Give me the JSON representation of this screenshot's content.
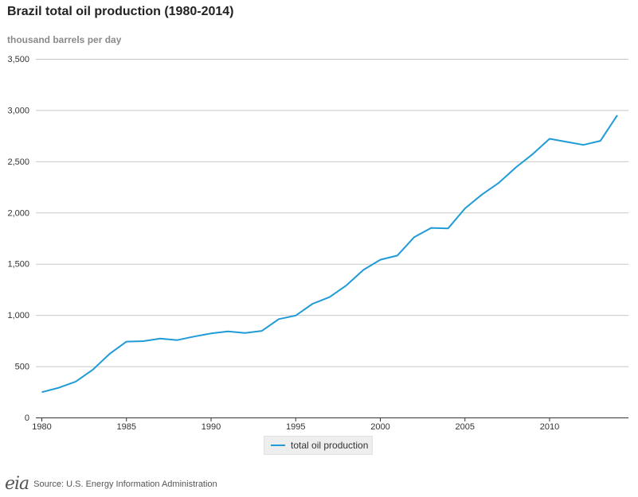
{
  "title": "Brazil total oil production (1980-2014)",
  "unit_label": "thousand barrels per day",
  "source": "Source: U.S. Energy Information Administration",
  "logo_text": "eia",
  "chart_data": {
    "type": "line",
    "title": "Brazil total oil production (1980-2014)",
    "ylabel": "thousand barrels per day",
    "xlabel": "",
    "ylim": [
      0,
      3500
    ],
    "xlim": [
      1980,
      2014
    ],
    "grid": true,
    "legend_placement": "bottom-center",
    "y_ticks": [
      0,
      500,
      1000,
      1500,
      2000,
      2500,
      3000,
      3500
    ],
    "y_tick_labels": [
      "0",
      "500",
      "1,000",
      "1,500",
      "2,000",
      "2,500",
      "3,000",
      "3,500"
    ],
    "x_ticks": [
      1980,
      1985,
      1990,
      1995,
      2000,
      2005,
      2010
    ],
    "x_tick_labels": [
      "1980",
      "1985",
      "1990",
      "1995",
      "2000",
      "2005",
      "2010"
    ],
    "series": [
      {
        "name": "total oil production",
        "color": "#1f9bd7",
        "x": [
          1980,
          1981,
          1982,
          1983,
          1984,
          1985,
          1986,
          1987,
          1988,
          1989,
          1990,
          1991,
          1992,
          1993,
          1994,
          1995,
          1996,
          1997,
          1998,
          1999,
          2000,
          2001,
          2002,
          2003,
          2004,
          2005,
          2006,
          2007,
          2008,
          2009,
          2010,
          2011,
          2012,
          2013,
          2014
        ],
        "values": [
          247,
          290,
          350,
          465,
          620,
          740,
          745,
          770,
          755,
          790,
          820,
          840,
          825,
          845,
          960,
          995,
          1110,
          1175,
          1290,
          1440,
          1540,
          1580,
          1760,
          1850,
          1845,
          2040,
          2175,
          2290,
          2440,
          2570,
          2720,
          2690,
          2660,
          2700,
          2950
        ]
      }
    ]
  }
}
